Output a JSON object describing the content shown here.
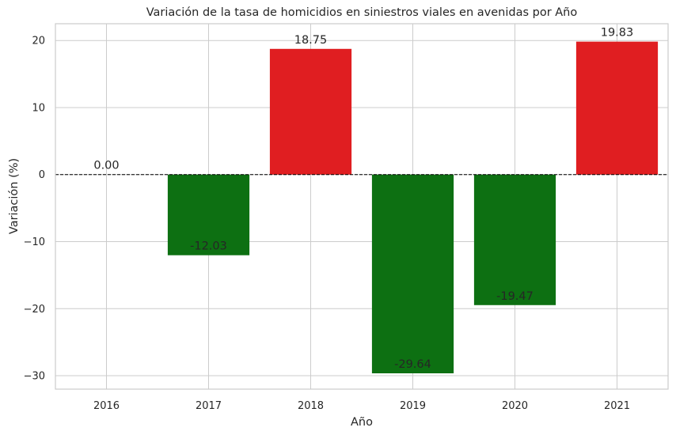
{
  "chart_data": {
    "type": "bar",
    "title": "Variación de la tasa de homicidios en siniestros viales en avenidas por Año",
    "xlabel": "Año",
    "ylabel": "Variación (%)",
    "categories": [
      "2016",
      "2017",
      "2018",
      "2019",
      "2020",
      "2021"
    ],
    "values": [
      0.0,
      -12.03,
      18.75,
      -29.64,
      -19.47,
      19.83
    ],
    "data_labels": [
      "0.00",
      "-12.03",
      "18.75",
      "-29.64",
      "-19.47",
      "19.83"
    ],
    "ylim": [
      -32,
      22.5
    ],
    "yticks": [
      -30,
      -20,
      -10,
      0,
      10,
      20
    ],
    "ytick_labels": [
      "−30",
      "−20",
      "−10",
      "0",
      "10",
      "20"
    ],
    "grid": "y",
    "reference_line": 0,
    "colors": {
      "positive": "#e01e21",
      "negative": "#0d7012"
    }
  }
}
